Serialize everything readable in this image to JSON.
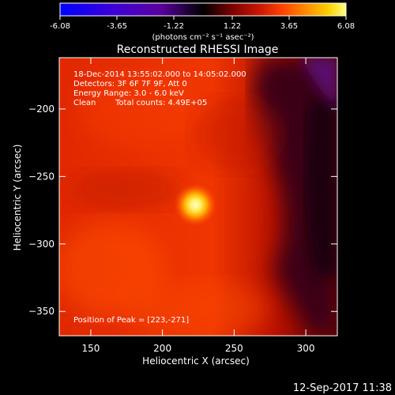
{
  "colors": {
    "background": "#000000",
    "text": "#ffffff",
    "colormap": [
      "#0000ff",
      "#3b00d8",
      "#5a00a0",
      "#000000",
      "#7a0000",
      "#cc1800",
      "#ff4500",
      "#ff8c00",
      "#ffd000",
      "#ffff80"
    ]
  },
  "colorbar": {
    "tick_labels": [
      "-6.08",
      "-3.65",
      "-1.22",
      "1.22",
      "3.65",
      "6.08"
    ],
    "units_label": "(photons cm⁻² s⁻¹ asec⁻²)",
    "range": [
      -6.08,
      6.08
    ]
  },
  "chart_data": {
    "type": "heatmap",
    "title": "Reconstructed RHESSI Image",
    "xlabel": "Heliocentric X (arcsec)",
    "ylabel": "Heliocentric Y (arcsec)",
    "xlim": [
      128,
      322
    ],
    "ylim": [
      -368,
      -162
    ],
    "x_tick_labels": [
      "150",
      "200",
      "250",
      "300"
    ],
    "x_ticks": [
      150,
      200,
      250,
      300
    ],
    "y_tick_labels": [
      "−200",
      "−250",
      "−300",
      "−350"
    ],
    "y_ticks": [
      -200,
      -250,
      -300,
      -350
    ],
    "peak": {
      "x": 223,
      "y": -271
    },
    "annotations": {
      "time_range": "18-Dec-2014 13:55:02.000 to 14:05:02.000",
      "detectors": "Detectors: 3F 6F 7F 9F, Att 0",
      "energy": "Energy Range: 3.0 - 6.0 keV",
      "method": "Clean",
      "total_counts": "Total counts: 4.49E+05",
      "peak_label": "Position of Peak = [223,-271]"
    }
  },
  "footer": {
    "timestamp": "12-Sep-2017 11:38"
  }
}
